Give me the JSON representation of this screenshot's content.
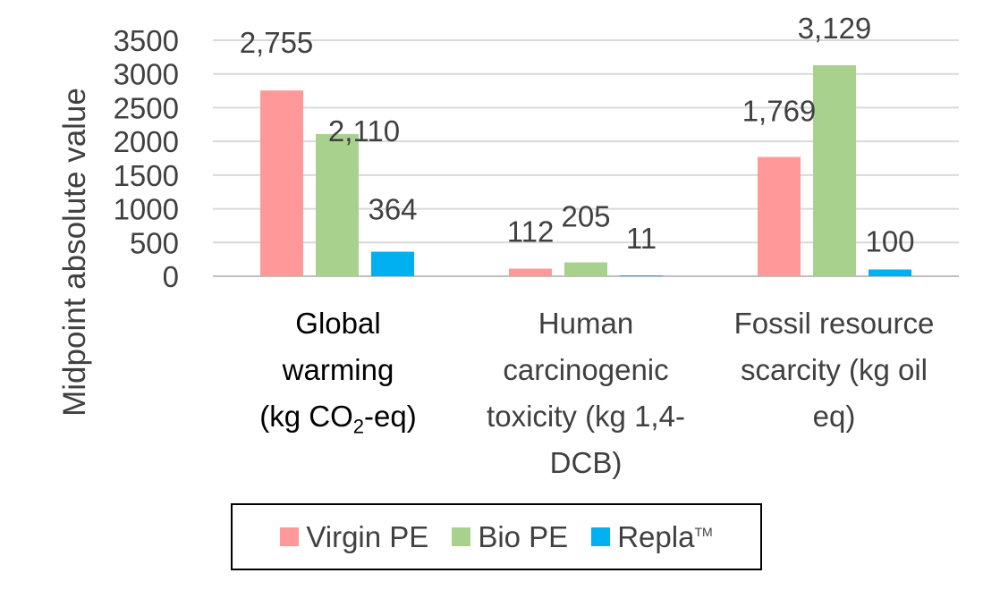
{
  "chart_data": {
    "type": "bar",
    "ylabel": "Midpoint absolute value",
    "ylim": [
      0,
      3500
    ],
    "yticks": [
      0,
      500,
      1000,
      1500,
      2000,
      2500,
      3000,
      3500
    ],
    "grid": true,
    "categories": [
      "Global warming (kg CO2-eq)",
      "Human carcinogenic toxicity (kg 1,4-DCB)",
      "Fossil resource scarcity (kg oil eq)"
    ],
    "series": [
      {
        "name": "Virgin PE",
        "color": "#ff9999",
        "values": [
          2755,
          112,
          1769
        ],
        "labels": [
          "2,755",
          "112",
          "1,769"
        ]
      },
      {
        "name": "Bio PE",
        "color": "#a9d18e",
        "values": [
          2110,
          205,
          3129
        ],
        "labels": [
          "2,110",
          "205",
          "3,129"
        ]
      },
      {
        "name": "Repla",
        "color": "#00b0f0",
        "values": [
          364,
          11,
          100
        ],
        "labels": [
          "364",
          "11",
          "100"
        ]
      }
    ],
    "legend_position": "bottom"
  },
  "category_labels": {
    "c1_line1": "Global",
    "c1_line2": "warming",
    "c1_line3_pre": "(kg CO",
    "c1_line3_sub": "2",
    "c1_line3_post": "-eq)",
    "c2_line1": "Human",
    "c2_line2": "carcinogenic",
    "c2_line3": "toxicity (kg 1,4-",
    "c2_line4": "DCB)",
    "c3_line1": "Fossil resource",
    "c3_line2": "scarcity (kg oil",
    "c3_line3": "eq)"
  },
  "legend": {
    "item1": "Virgin PE",
    "item2": "Bio PE",
    "item3": "Repla",
    "item3_mark": "TM"
  }
}
